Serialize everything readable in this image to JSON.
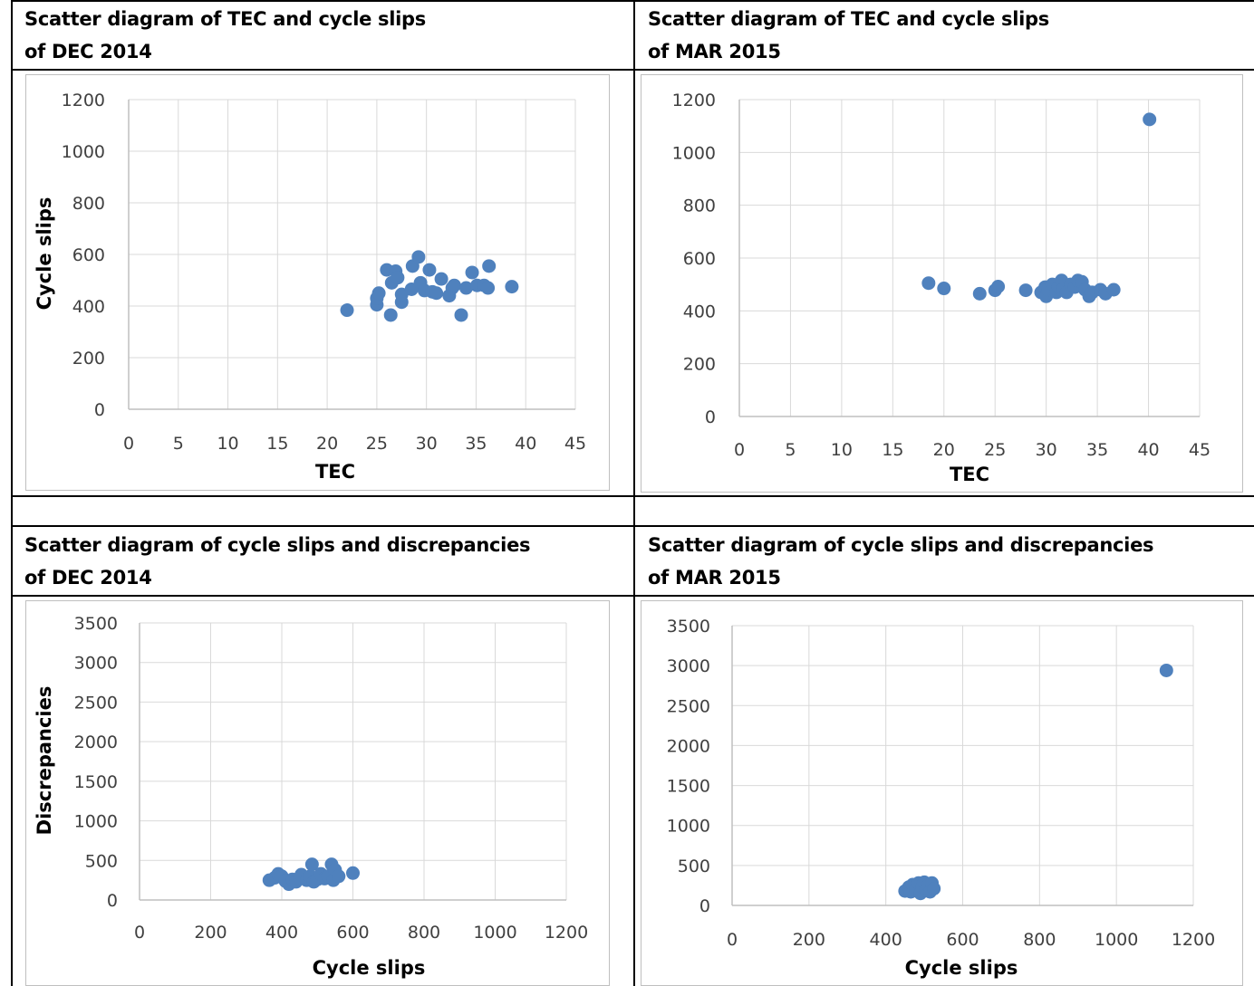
{
  "charts": [
    {
      "title_line1": "Scatter diagram of TEC and cycle slips",
      "title_line2": "of DEC 2014",
      "chart_data": {
        "type": "scatter",
        "title": "Scatter diagram of TEC and cycle slips of DEC 2014",
        "xlabel": "TEC",
        "ylabel": "Cycle slips",
        "xlim": [
          0,
          45
        ],
        "ylim": [
          0,
          1200
        ],
        "xticks": [
          0,
          5,
          10,
          15,
          20,
          25,
          30,
          35,
          40,
          45
        ],
        "yticks": [
          0,
          200,
          400,
          600,
          800,
          1000,
          1200
        ],
        "grid": true,
        "color": "#4f81bd",
        "points": [
          [
            22,
            384
          ],
          [
            25,
            405
          ],
          [
            25,
            430
          ],
          [
            25.2,
            450
          ],
          [
            26,
            540
          ],
          [
            26.4,
            365
          ],
          [
            26.5,
            490
          ],
          [
            26.9,
            535
          ],
          [
            27.1,
            510
          ],
          [
            27.5,
            415
          ],
          [
            27.5,
            445
          ],
          [
            28.5,
            465
          ],
          [
            28.6,
            555
          ],
          [
            29.2,
            590
          ],
          [
            29.4,
            490
          ],
          [
            29.8,
            460
          ],
          [
            30.3,
            540
          ],
          [
            30.6,
            455
          ],
          [
            31,
            450
          ],
          [
            31.5,
            505
          ],
          [
            32.3,
            440
          ],
          [
            32.6,
            470
          ],
          [
            32.8,
            480
          ],
          [
            33.5,
            365
          ],
          [
            34,
            470
          ],
          [
            34.6,
            530
          ],
          [
            35.1,
            480
          ],
          [
            35.8,
            480
          ],
          [
            36.2,
            470
          ],
          [
            36.3,
            555
          ],
          [
            38.6,
            475
          ]
        ]
      }
    },
    {
      "title_line1": "Scatter diagram of TEC and cycle slips",
      "title_line2": "of MAR 2015",
      "chart_data": {
        "type": "scatter",
        "title": "Scatter diagram of TEC and cycle slips of MAR 2015",
        "xlabel": "TEC",
        "ylabel": "",
        "xlim": [
          0,
          45
        ],
        "ylim": [
          0,
          1200
        ],
        "xticks": [
          0,
          5,
          10,
          15,
          20,
          25,
          30,
          35,
          40,
          45
        ],
        "yticks": [
          0,
          200,
          400,
          600,
          800,
          1000,
          1200
        ],
        "grid": true,
        "color": "#4f81bd",
        "points": [
          [
            18.5,
            505
          ],
          [
            20,
            485
          ],
          [
            23.5,
            465
          ],
          [
            25,
            478
          ],
          [
            25.3,
            492
          ],
          [
            28,
            478
          ],
          [
            29.5,
            470
          ],
          [
            29.9,
            490
          ],
          [
            30,
            455
          ],
          [
            30.2,
            480
          ],
          [
            30.6,
            500
          ],
          [
            31,
            470
          ],
          [
            31.2,
            490
          ],
          [
            31.5,
            515
          ],
          [
            31.6,
            480
          ],
          [
            32,
            470
          ],
          [
            32.4,
            500
          ],
          [
            32.8,
            490
          ],
          [
            33.1,
            515
          ],
          [
            33.5,
            510
          ],
          [
            33.8,
            480
          ],
          [
            34.2,
            455
          ],
          [
            34.5,
            470
          ],
          [
            35.3,
            480
          ],
          [
            35.8,
            465
          ],
          [
            36.6,
            480
          ],
          [
            40.1,
            1125
          ]
        ]
      }
    },
    {
      "title_line1": "Scatter diagram of cycle slips and discrepancies",
      "title_line2": "of DEC 2014",
      "chart_data": {
        "type": "scatter",
        "title": "Scatter diagram of cycle slips and discrepancies of DEC 2014",
        "xlabel": "Cycle slips",
        "ylabel": "Discrepancies",
        "xlim": [
          0,
          1200
        ],
        "ylim": [
          0,
          3500
        ],
        "xticks": [
          0,
          200,
          400,
          600,
          800,
          1000,
          1200
        ],
        "yticks": [
          0,
          500,
          1000,
          1500,
          2000,
          2500,
          3000,
          3500
        ],
        "grid": true,
        "color": "#4f81bd",
        "points": [
          [
            365,
            250
          ],
          [
            380,
            280
          ],
          [
            390,
            330
          ],
          [
            400,
            300
          ],
          [
            410,
            240
          ],
          [
            420,
            200
          ],
          [
            430,
            260
          ],
          [
            440,
            230
          ],
          [
            450,
            280
          ],
          [
            455,
            320
          ],
          [
            470,
            250
          ],
          [
            480,
            300
          ],
          [
            485,
            450
          ],
          [
            490,
            230
          ],
          [
            500,
            260
          ],
          [
            510,
            330
          ],
          [
            520,
            270
          ],
          [
            530,
            300
          ],
          [
            540,
            450
          ],
          [
            545,
            250
          ],
          [
            550,
            380
          ],
          [
            560,
            300
          ],
          [
            600,
            340
          ]
        ]
      }
    },
    {
      "title_line1": "Scatter diagram of cycle slips and discrepancies",
      "title_line2": "of MAR 2015",
      "chart_data": {
        "type": "scatter",
        "title": "Scatter diagram of cycle slips and discrepancies of MAR 2015",
        "xlabel": "Cycle slips",
        "ylabel": "",
        "xlim": [
          0,
          1200
        ],
        "ylim": [
          0,
          3500
        ],
        "xticks": [
          0,
          200,
          400,
          600,
          800,
          1000,
          1200
        ],
        "yticks": [
          0,
          500,
          1000,
          1500,
          2000,
          2500,
          3000,
          3500
        ],
        "grid": true,
        "color": "#4f81bd",
        "points": [
          [
            450,
            180
          ],
          [
            460,
            230
          ],
          [
            465,
            170
          ],
          [
            470,
            260
          ],
          [
            478,
            200
          ],
          [
            485,
            280
          ],
          [
            490,
            150
          ],
          [
            495,
            230
          ],
          [
            500,
            290
          ],
          [
            505,
            190
          ],
          [
            510,
            250
          ],
          [
            515,
            170
          ],
          [
            520,
            280
          ],
          [
            525,
            210
          ],
          [
            1130,
            2940
          ]
        ]
      }
    }
  ]
}
